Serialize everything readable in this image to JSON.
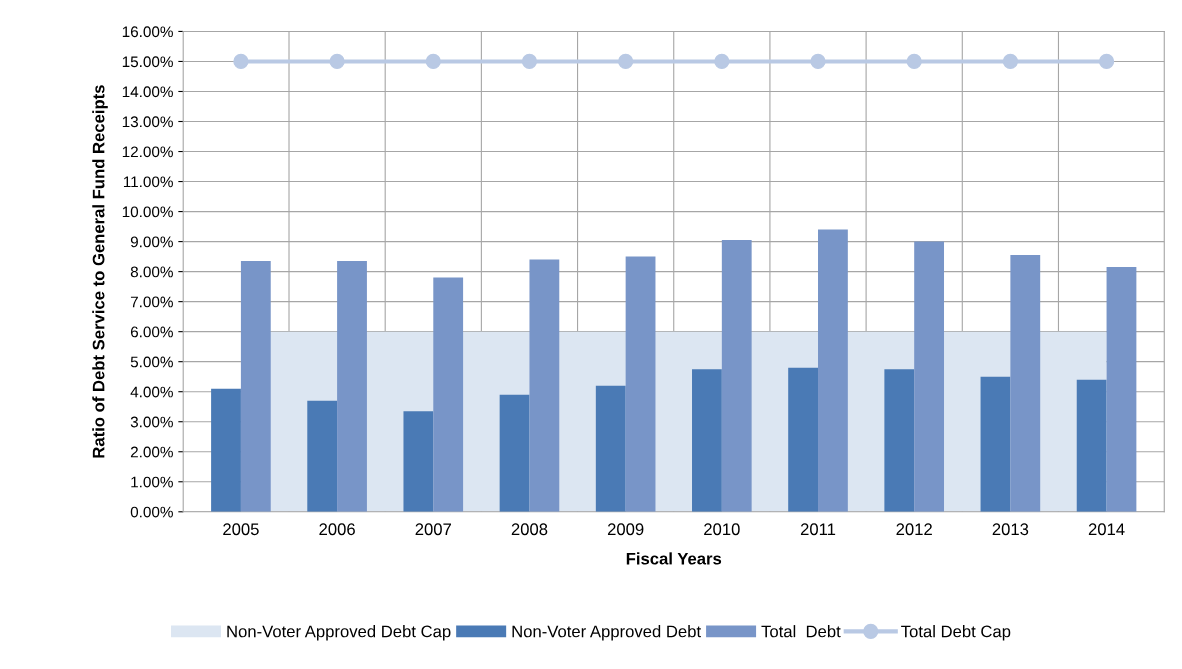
{
  "chart_data": {
    "type": "bar",
    "xlabel": "Fiscal Years",
    "ylabel": "Ratio of Debt Service to General Fund Receipts",
    "categories": [
      "2005",
      "2006",
      "2007",
      "2008",
      "2009",
      "2010",
      "2011",
      "2012",
      "2013",
      "2014"
    ],
    "series": [
      {
        "name": "Non-Voter Approved Debt Cap",
        "type": "area",
        "color": "#dce6f2",
        "values": [
          6,
          6,
          6,
          6,
          6,
          6,
          6,
          6,
          6,
          6
        ]
      },
      {
        "name": "Non-Voter Approved Debt",
        "color": "#4a7ab5",
        "values": [
          4.1,
          3.7,
          3.35,
          3.9,
          4.2,
          4.75,
          4.8,
          4.75,
          4.5,
          4.4
        ]
      },
      {
        "name": "Total  Debt",
        "color": "#7895c8",
        "values": [
          8.35,
          8.35,
          7.8,
          8.4,
          8.5,
          9.05,
          9.4,
          9.0,
          8.55,
          8.15
        ]
      },
      {
        "name": "Total Debt Cap",
        "type": "line",
        "color": "#b9c9e4",
        "marker": "circle",
        "values": [
          15,
          15,
          15,
          15,
          15,
          15,
          15,
          15,
          15,
          15
        ]
      }
    ],
    "ylim": [
      0,
      16
    ],
    "yticks": [
      {
        "value": 0,
        "label": "0.00%"
      },
      {
        "value": 1,
        "label": "1.00%"
      },
      {
        "value": 2,
        "label": "2.00%"
      },
      {
        "value": 3,
        "label": "3.00%"
      },
      {
        "value": 4,
        "label": "4.00%"
      },
      {
        "value": 5,
        "label": "5.00%"
      },
      {
        "value": 6,
        "label": "6.00%"
      },
      {
        "value": 7,
        "label": "7.00%"
      },
      {
        "value": 8,
        "label": "8.00%"
      },
      {
        "value": 9,
        "label": "9.00%"
      },
      {
        "value": 10,
        "label": "10.00%"
      },
      {
        "value": 11,
        "label": "11.00%"
      },
      {
        "value": 12,
        "label": "12.00%"
      },
      {
        "value": 13,
        "label": "13.00%"
      },
      {
        "value": 14,
        "label": "14.00%"
      },
      {
        "value": 15,
        "label": "15.00%"
      },
      {
        "value": 16,
        "label": "16.00%"
      }
    ],
    "grid": true,
    "legend": "bottom"
  }
}
